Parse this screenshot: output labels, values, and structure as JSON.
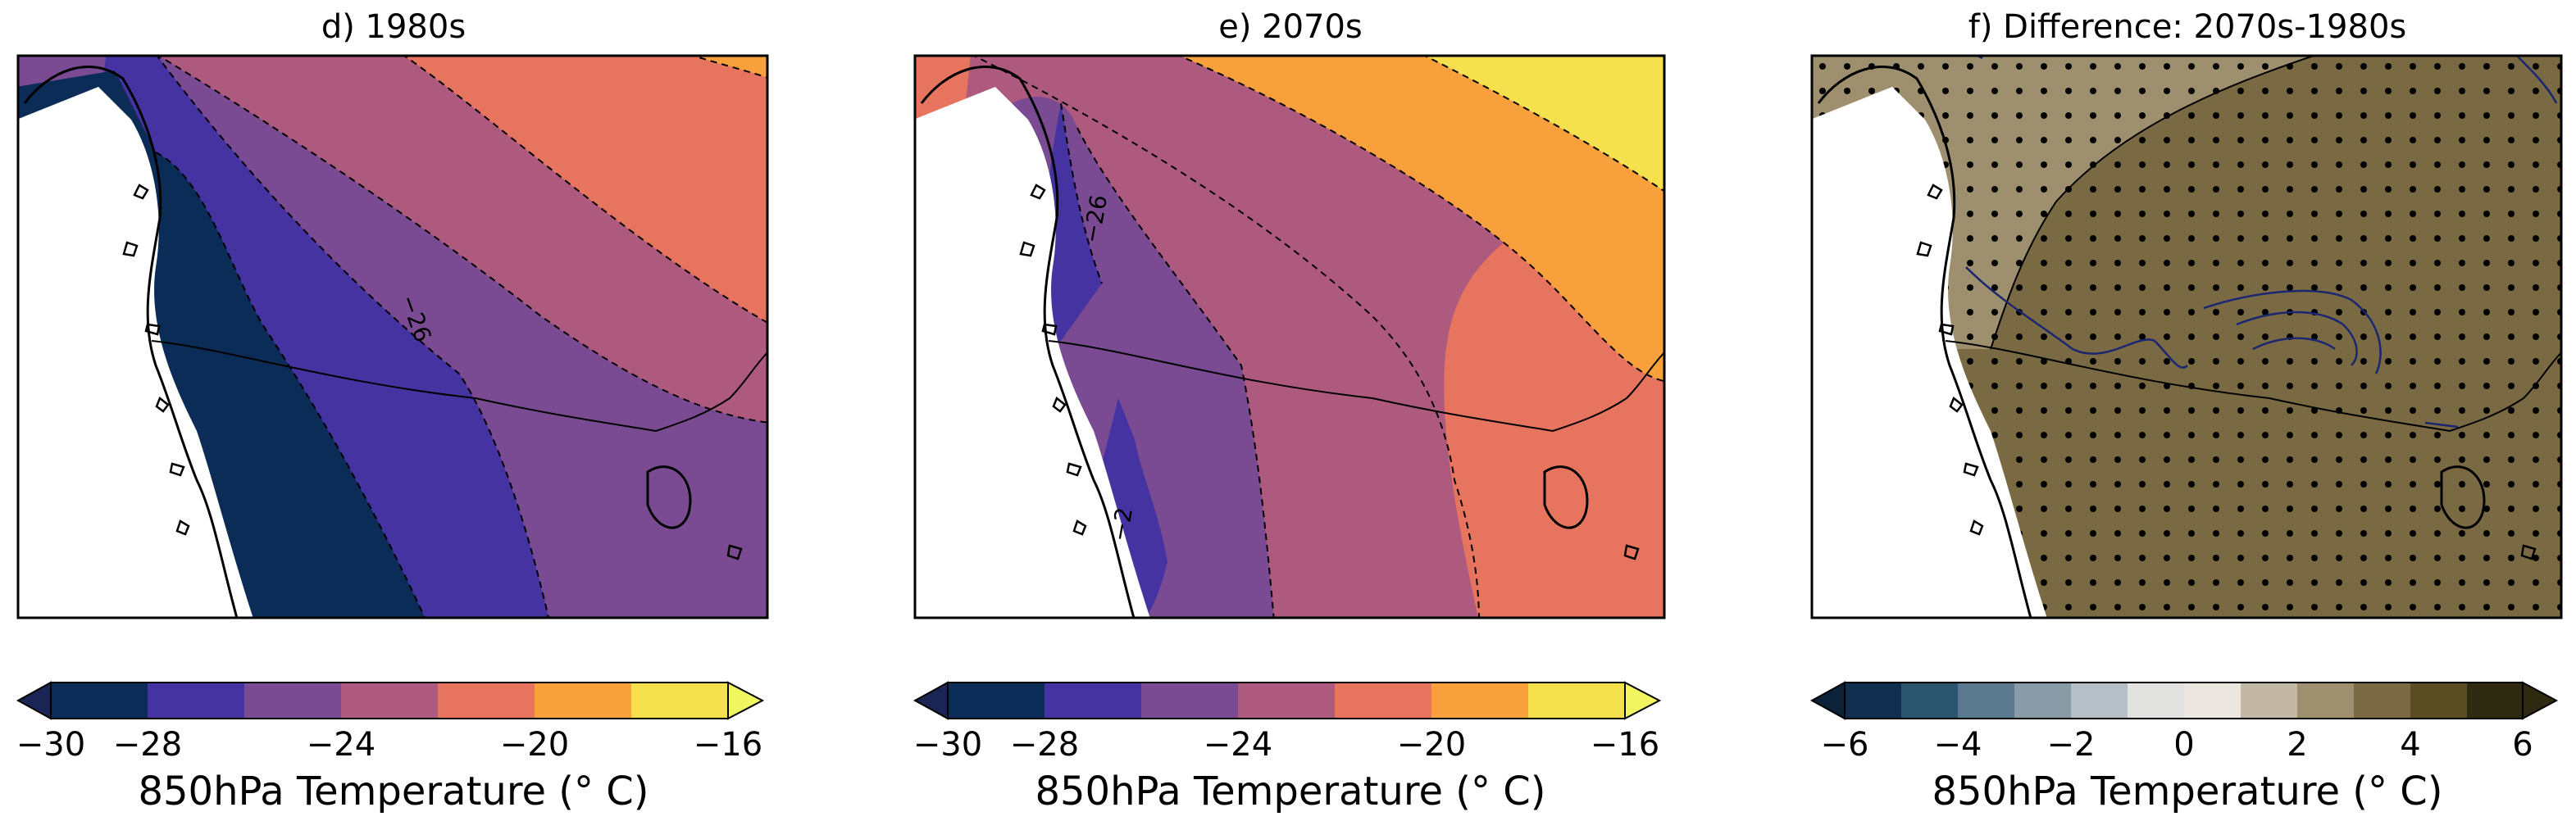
{
  "panels": [
    {
      "title": "d) 1980s",
      "contour_labels": [
        "−26"
      ],
      "colorbar": {
        "label": "850hPa Temperature (° C)",
        "ticks": [
          "−30",
          "−28",
          "−24",
          "−20",
          "−16"
        ],
        "levels": [
          -30,
          -28,
          -26,
          -24,
          -22,
          -20,
          -18,
          -16
        ],
        "colors": [
          "#0b2c56",
          "#1a2555",
          "#4433a0",
          "#7a4b92",
          "#ad5a7e",
          "#e6745f",
          "#f8a03c",
          "#f5e04e",
          "#f0f560"
        ]
      }
    },
    {
      "title": "e) 2070s",
      "contour_labels": [
        "−26",
        "−2"
      ],
      "colorbar": {
        "label": "850hPa Temperature (° C)",
        "ticks": [
          "−30",
          "−28",
          "−24",
          "−20",
          "−16"
        ],
        "levels": [
          -30,
          -28,
          -26,
          -24,
          -22,
          -20,
          -18,
          -16
        ],
        "colors": [
          "#0b2c56",
          "#1a2555",
          "#4433a0",
          "#7a4b92",
          "#ad5a7e",
          "#e6745f",
          "#f8a03c",
          "#f5e04e",
          "#f0f560"
        ]
      }
    },
    {
      "title": "f) Difference: 2070s-1980s",
      "colorbar": {
        "label": "850hPa Temperature (° C)",
        "ticks": [
          "−6",
          "−4",
          "−2",
          "0",
          "2",
          "4",
          "6"
        ],
        "levels": [
          -6,
          -5,
          -4,
          -3,
          -2,
          -1,
          0,
          1,
          2,
          3,
          4,
          5,
          6
        ],
        "colors": [
          "#0c2238",
          "#102e4d",
          "#2c5670",
          "#5a788e",
          "#8a9ba8",
          "#b6bec6",
          "#e2e2e0",
          "#ebe7e0",
          "#c3b8a4",
          "#9e8f6e",
          "#7a6a43",
          "#5a4d24",
          "#2e2a12"
        ]
      }
    }
  ],
  "colors": {
    "land_mask": "#ffffff",
    "frame": "#000000",
    "diff_fill_main": "#7a6a43",
    "diff_fill_light": "#9e8f6e",
    "negative_contour": "#1a2670"
  }
}
